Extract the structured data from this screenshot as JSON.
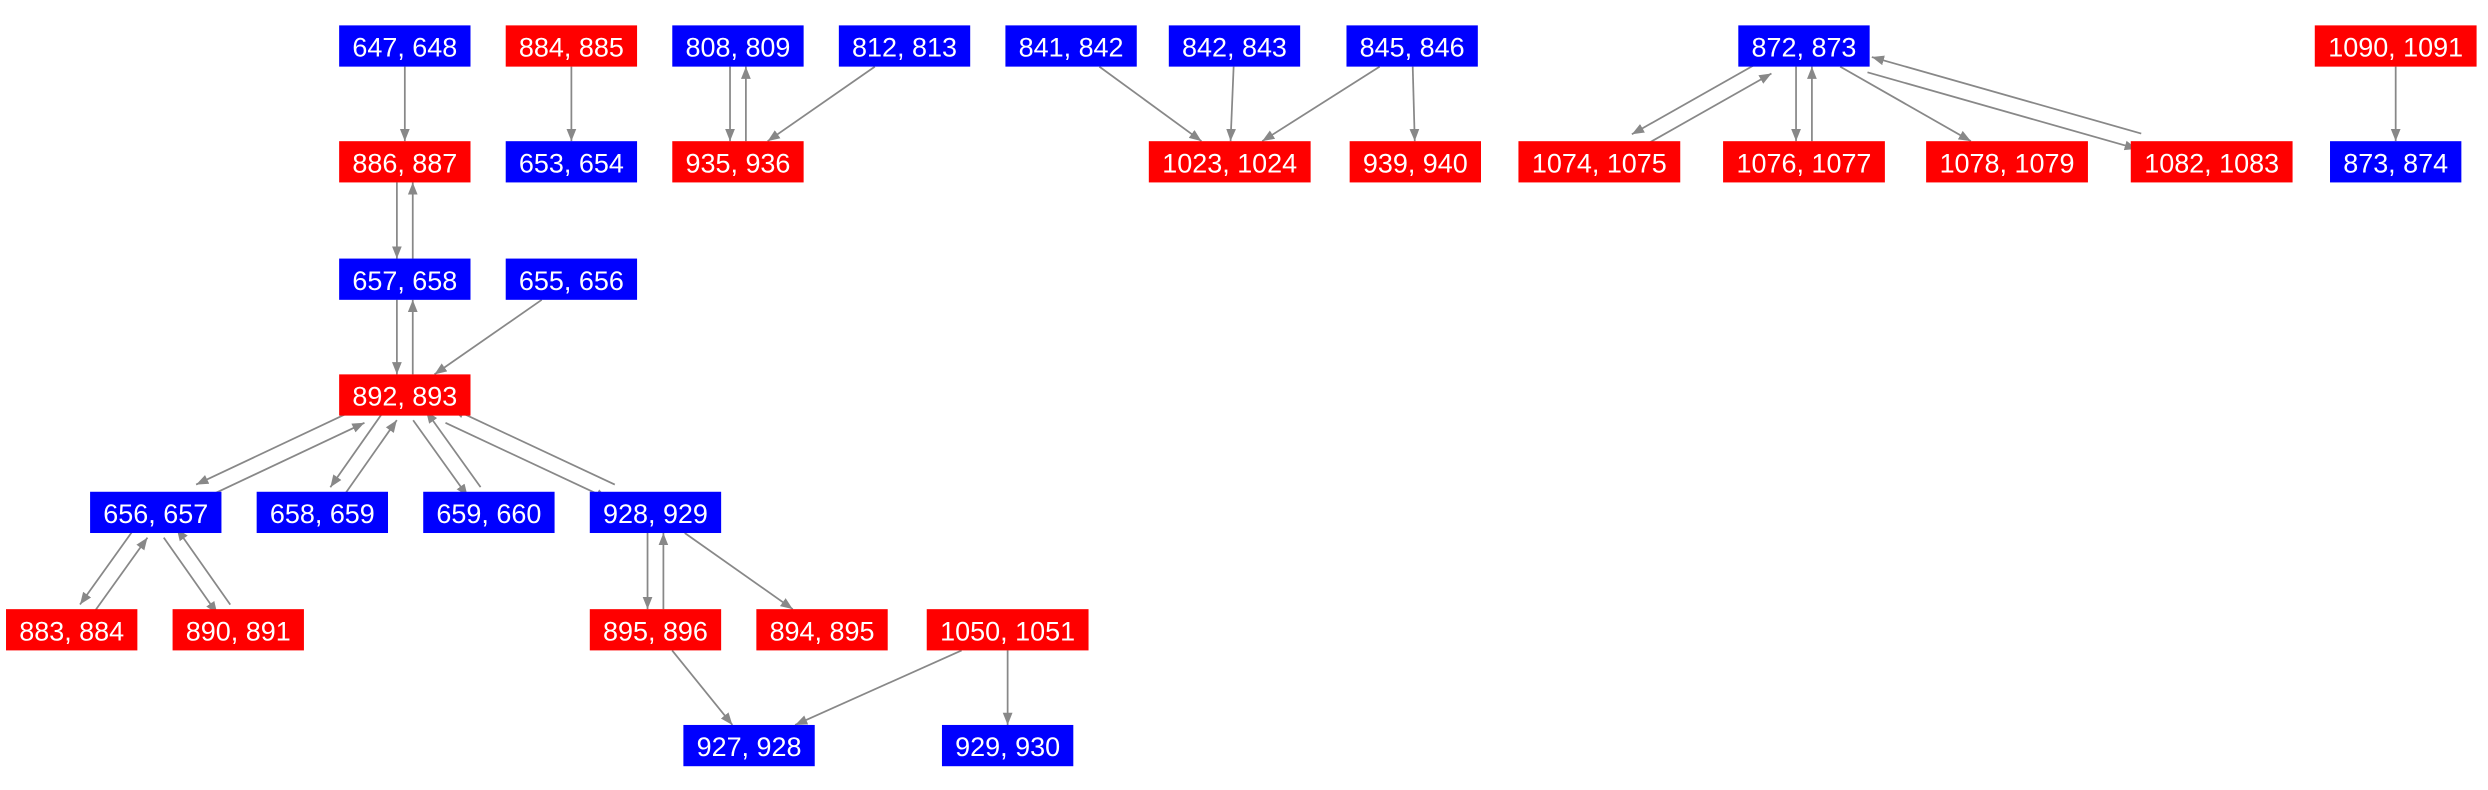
{
  "nodes": [
    {
      "label": "647, 648",
      "color": "#0000ff"
    },
    {
      "label": "884, 885",
      "color": "#ff0000"
    },
    {
      "label": "808, 809",
      "color": "#0000ff"
    },
    {
      "label": "812, 813",
      "color": "#0000ff"
    },
    {
      "label": "841, 842",
      "color": "#0000ff"
    },
    {
      "label": "842, 843",
      "color": "#0000ff"
    },
    {
      "label": "845, 846",
      "color": "#0000ff"
    },
    {
      "label": "872, 873",
      "color": "#0000ff"
    },
    {
      "label": "1090, 1091",
      "color": "#ff0000"
    },
    {
      "label": "886, 887",
      "color": "#ff0000"
    },
    {
      "label": "653, 654",
      "color": "#0000ff"
    },
    {
      "label": "935, 936",
      "color": "#ff0000"
    },
    {
      "label": "1023, 1024",
      "color": "#ff0000"
    },
    {
      "label": "939, 940",
      "color": "#ff0000"
    },
    {
      "label": "1074, 1075",
      "color": "#ff0000"
    },
    {
      "label": "1076, 1077",
      "color": "#ff0000"
    },
    {
      "label": "1078, 1079",
      "color": "#ff0000"
    },
    {
      "label": "1082, 1083",
      "color": "#ff0000"
    },
    {
      "label": "873, 874",
      "color": "#0000ff"
    },
    {
      "label": "657, 658",
      "color": "#0000ff"
    },
    {
      "label": "655, 656",
      "color": "#0000ff"
    },
    {
      "label": "892, 893",
      "color": "#ff0000"
    },
    {
      "label": "656, 657",
      "color": "#0000ff"
    },
    {
      "label": "658, 659",
      "color": "#0000ff"
    },
    {
      "label": "659, 660",
      "color": "#0000ff"
    },
    {
      "label": "928, 929",
      "color": "#0000ff"
    },
    {
      "label": "883, 884",
      "color": "#ff0000"
    },
    {
      "label": "890, 891",
      "color": "#ff0000"
    },
    {
      "label": "895, 896",
      "color": "#ff0000"
    },
    {
      "label": "894, 895",
      "color": "#ff0000"
    },
    {
      "label": "1050, 1051",
      "color": "#ff0000"
    },
    {
      "label": "927, 928",
      "color": "#0000ff"
    },
    {
      "label": "929, 930",
      "color": "#0000ff"
    }
  ]
}
